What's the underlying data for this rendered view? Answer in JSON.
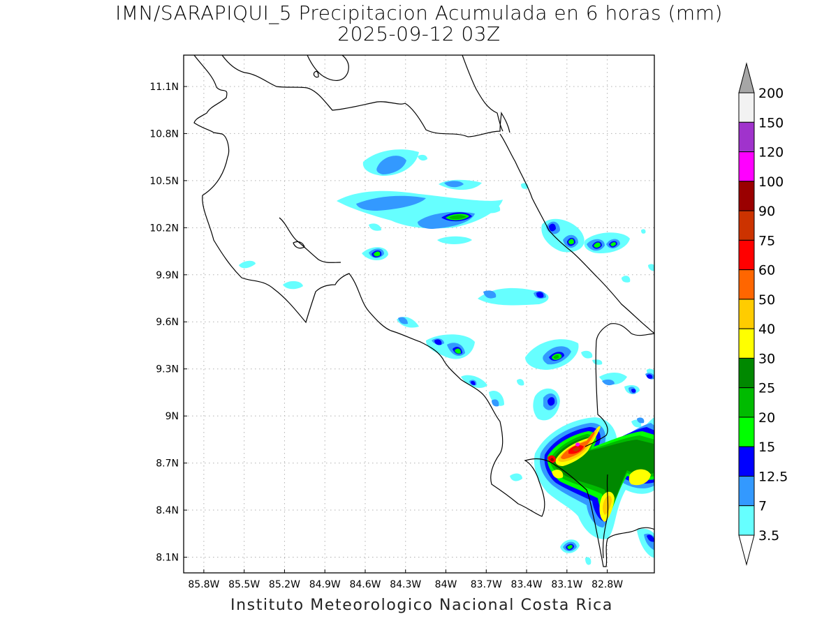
{
  "title": {
    "line1": "IMN/SARAPIQUI_5 Precipitacion Acumulada en 6 horas (mm)",
    "line2": "2025-09-12 03Z"
  },
  "footer": "Instituto Meteorologico Nacional Costa Rica",
  "map": {
    "lon_range": [
      -85.95,
      -82.45
    ],
    "lat_range": [
      8.0,
      11.3
    ],
    "lon_ticks": [
      "85.8W",
      "85.5W",
      "85.2W",
      "84.9W",
      "84.6W",
      "84.3W",
      "84W",
      "83.7W",
      "83.4W",
      "83.1W",
      "82.8W"
    ],
    "lat_ticks": [
      "11.1N",
      "10.8N",
      "10.5N",
      "10.2N",
      "9.9N",
      "9.6N",
      "9.3N",
      "9N",
      "8.7N",
      "8.4N",
      "8.1N"
    ],
    "gridlines": "dotted"
  },
  "colorbar": {
    "levels": [
      "200",
      "150",
      "120",
      "100",
      "90",
      "75",
      "60",
      "50",
      "40",
      "30",
      "25",
      "20",
      "15",
      "12.5",
      "7",
      "3.5"
    ],
    "colors": [
      "#f2f2f2",
      "#a033cc",
      "#ff00ff",
      "#9a0000",
      "#cc3300",
      "#ff0000",
      "#ff6600",
      "#ffcc00",
      "#ffff00",
      "#008800",
      "#00bb00",
      "#00ff00",
      "#0000ff",
      "#3399ff",
      "#66ffff"
    ],
    "over_color": "#a6a6a6",
    "under_color": "#ffffff"
  }
}
